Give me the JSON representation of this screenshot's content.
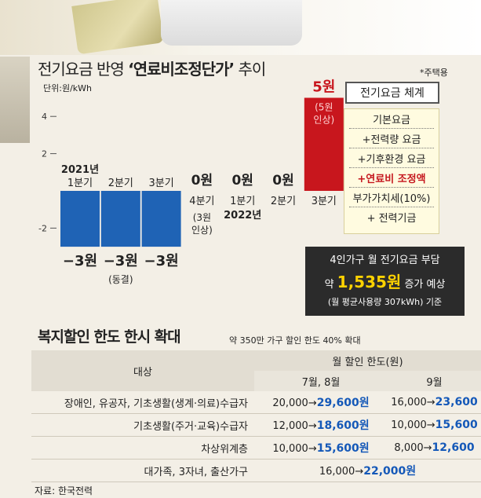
{
  "chart_data": {
    "type": "bar",
    "title_plain": "전기요금 반영 ",
    "title_bold": "‘연료비조정단가’",
    "title_tail": " 추이",
    "note": "*주택용",
    "unit": "단위:원/kWh",
    "y_ticks": [
      4,
      2,
      -2
    ],
    "ylim": [
      -3.8,
      5.5
    ],
    "categories": [
      {
        "label": "1분기",
        "year": "2021년"
      },
      {
        "label": "2분기",
        "year": ""
      },
      {
        "label": "3분기",
        "year": ""
      },
      {
        "label": "4분기",
        "year": ""
      },
      {
        "label": "1분기",
        "year": "2022년"
      },
      {
        "label": "2분기",
        "year": ""
      },
      {
        "label": "3분기",
        "year": ""
      }
    ],
    "values": [
      -3,
      -3,
      -3,
      0,
      0,
      0,
      5
    ],
    "value_labels": [
      "−3원",
      "−3원",
      "−3원",
      "0원",
      "0원",
      "0원",
      "5원"
    ],
    "annotations": [
      "",
      "(동결)",
      "",
      "(3원\n인상)",
      "",
      "",
      "(5원\n인상)"
    ],
    "colors": {
      "negative": "#1f63b5",
      "positive": "#c8161d"
    }
  },
  "system": {
    "title": "전기요금 체계",
    "items": [
      "기본요금",
      "+전력량 요금",
      "+기후환경 요금",
      "+연료비 조정액",
      "부가가치세(10%)",
      "+ 전력기금"
    ],
    "highlight_index": 3
  },
  "burden": {
    "line1": "4인가구 월 전기요금 부담",
    "prefix": "약 ",
    "amount": "1,535원",
    "suffix": " 증가 예상",
    "line3": "(월 평균사용량 307kWh) 기준"
  },
  "welfare": {
    "title": "복지할인 한도 한시 확대",
    "subtitle": "약 350만 가구 할인 한도 40% 확대",
    "header_target": "대상",
    "header_limit": "월 할인 한도(원)",
    "header_jul_aug": "7월, 8월",
    "header_sep": "9월",
    "rows": [
      {
        "target": "장애인, 유공자, 기초생활(생계·의료)수급자",
        "ja_old": "20,000→",
        "ja_new": "29,600원",
        "sep_old": "16,000→",
        "sep_new": "23,600"
      },
      {
        "target": "기초생활(주거·교육)수급자",
        "ja_old": "12,000→",
        "ja_new": "18,600원",
        "sep_old": "10,000→",
        "sep_new": "15,600"
      },
      {
        "target": "차상위계층",
        "ja_old": "10,000→",
        "ja_new": "15,600원",
        "sep_old": "8,000→",
        "sep_new": "12,600"
      },
      {
        "target": "대가족, 3자녀, 출산가구",
        "merged_old": "16,000→",
        "merged_new": "22,000원"
      }
    ]
  },
  "source": "자료: 한국전력"
}
